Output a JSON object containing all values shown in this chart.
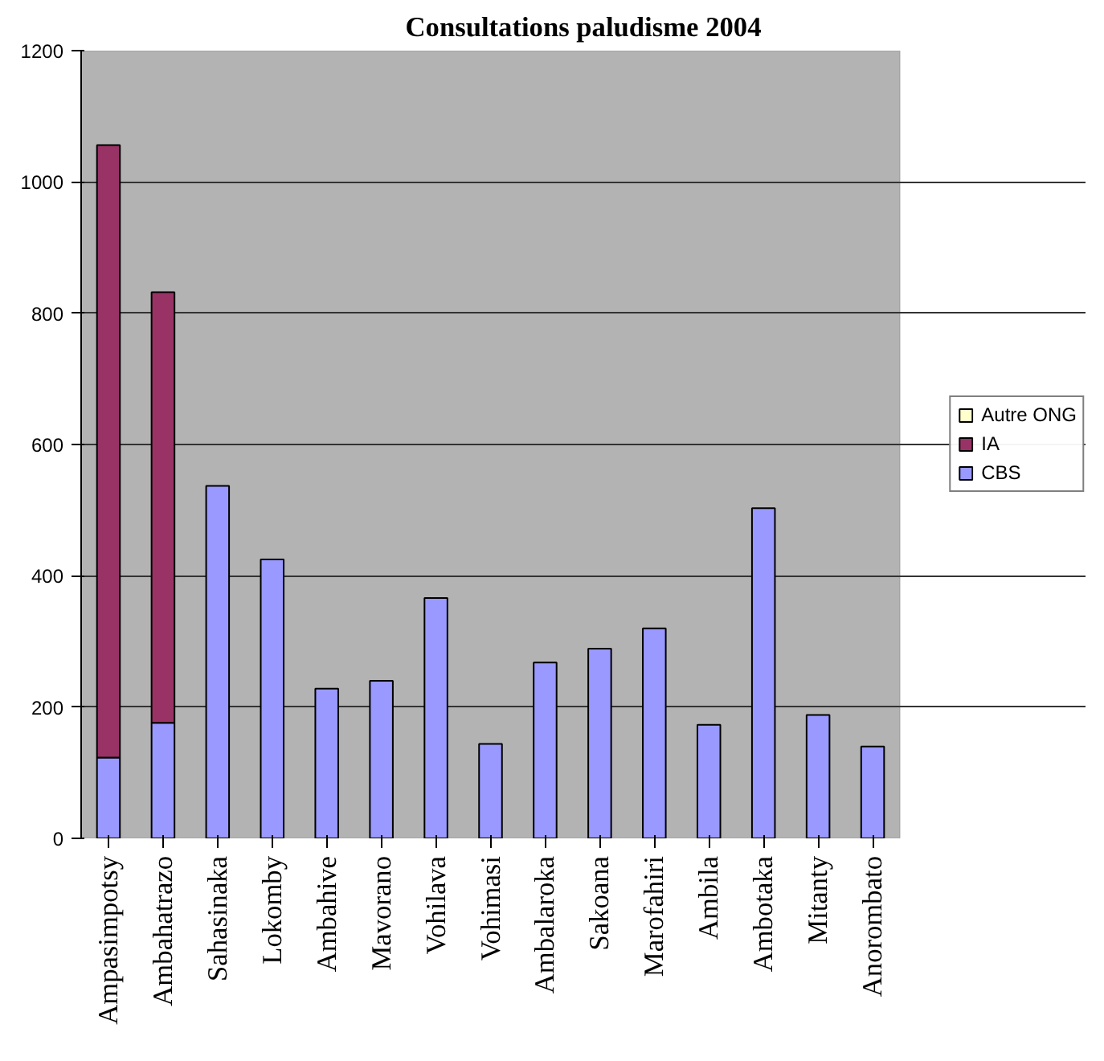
{
  "chart_data": {
    "type": "bar",
    "title": "Consultations paludisme 2004",
    "stacked": true,
    "categories": [
      "Ampasimpotsy",
      "Ambahatrazo",
      "Sahasinaka",
      "Lokomby",
      "Ambahive",
      "Mavorano",
      "Vohilava",
      "Vohimasi",
      "Ambalaroka",
      "Sakoana",
      "Marofahiri",
      "Ambila",
      "Ambotaka",
      "Mitanty",
      "Anorombato"
    ],
    "series": [
      {
        "name": "CBS",
        "color": "#9999ff",
        "values": [
          123,
          176,
          537,
          425,
          228,
          240,
          366,
          144,
          268,
          289,
          320,
          173,
          503,
          188,
          140
        ]
      },
      {
        "name": "IA",
        "color": "#993366",
        "values": [
          933,
          656,
          null,
          null,
          null,
          null,
          null,
          null,
          null,
          null,
          null,
          null,
          null,
          null,
          null
        ]
      },
      {
        "name": "Autre ONG",
        "color": "#ffffcc",
        "values": [
          null,
          null,
          null,
          null,
          null,
          null,
          null,
          null,
          null,
          null,
          null,
          null,
          null,
          null,
          null
        ]
      }
    ],
    "ylim": [
      0,
      1200
    ],
    "yticks": [
      0,
      200,
      400,
      600,
      800,
      1000,
      1200
    ],
    "grid": "y",
    "legend": "right"
  }
}
